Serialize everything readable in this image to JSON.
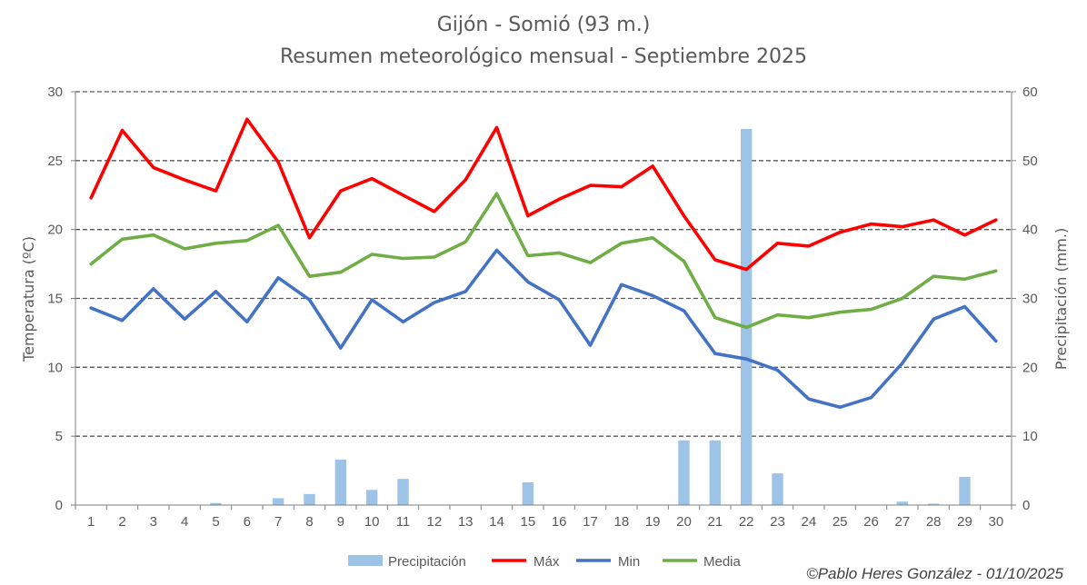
{
  "chart_data": {
    "type": "line",
    "title": "Gijón - Somió (93 m.)",
    "subtitle": "Resumen meteorológico mensual - Septiembre 2025",
    "ylabel": "Temperatura (ºC)",
    "y2label": "Precipitación (mm.)",
    "ylim": [
      0,
      30
    ],
    "y2lim": [
      0,
      60
    ],
    "yticks": [
      "0",
      "5",
      "10",
      "15",
      "20",
      "25",
      "30"
    ],
    "y2ticks": [
      "0",
      "10",
      "20",
      "30",
      "40",
      "50",
      "60"
    ],
    "grid": true,
    "legend_position": "bottom",
    "x": [
      "1",
      "2",
      "3",
      "4",
      "5",
      "6",
      "7",
      "8",
      "9",
      "10",
      "11",
      "12",
      "13",
      "14",
      "15",
      "16",
      "17",
      "18",
      "19",
      "20",
      "21",
      "22",
      "23",
      "24",
      "25",
      "26",
      "27",
      "28",
      "29",
      "30"
    ],
    "series": [
      {
        "name": "Precipitación",
        "type": "bar",
        "axis": "right",
        "color": "#9dc3e6",
        "values": [
          0,
          0,
          0,
          0,
          0.3,
          0,
          1.0,
          1.6,
          6.6,
          2.2,
          3.8,
          0,
          0,
          0,
          3.3,
          0,
          0,
          0,
          0,
          9.4,
          9.4,
          54.6,
          4.6,
          0,
          0,
          0,
          0.5,
          0.2,
          4.1,
          0
        ]
      },
      {
        "name": "Máx",
        "type": "line",
        "axis": "left",
        "color": "#ff0000",
        "values": [
          22.3,
          27.2,
          24.5,
          23.6,
          22.8,
          28.0,
          24.9,
          19.4,
          22.8,
          23.7,
          22.5,
          21.3,
          23.6,
          27.4,
          21.0,
          22.2,
          23.2,
          23.1,
          24.6,
          21.0,
          17.8,
          17.1,
          19.0,
          18.8,
          19.8,
          20.4,
          20.2,
          20.7,
          19.6,
          20.7
        ]
      },
      {
        "name": "Min",
        "type": "line",
        "axis": "left",
        "color": "#4472c4",
        "values": [
          14.3,
          13.4,
          15.7,
          13.5,
          15.5,
          13.3,
          16.5,
          14.9,
          11.4,
          14.9,
          13.3,
          14.7,
          15.5,
          18.5,
          16.2,
          14.9,
          11.6,
          16.0,
          15.2,
          14.1,
          11.0,
          10.6,
          9.8,
          7.7,
          7.1,
          7.8,
          10.3,
          13.5,
          14.4,
          11.9
        ]
      },
      {
        "name": "Media",
        "type": "line",
        "axis": "left",
        "color": "#70ad47",
        "values": [
          17.5,
          19.3,
          19.6,
          18.6,
          19.0,
          19.2,
          20.3,
          16.6,
          16.9,
          18.2,
          17.9,
          18.0,
          19.1,
          22.6,
          18.1,
          18.3,
          17.6,
          19.0,
          19.4,
          17.7,
          13.6,
          12.9,
          13.8,
          13.6,
          14.0,
          14.2,
          15.0,
          16.6,
          16.4,
          17.0
        ]
      }
    ]
  },
  "credit": "©Pablo Heres González - 01/10/2025"
}
